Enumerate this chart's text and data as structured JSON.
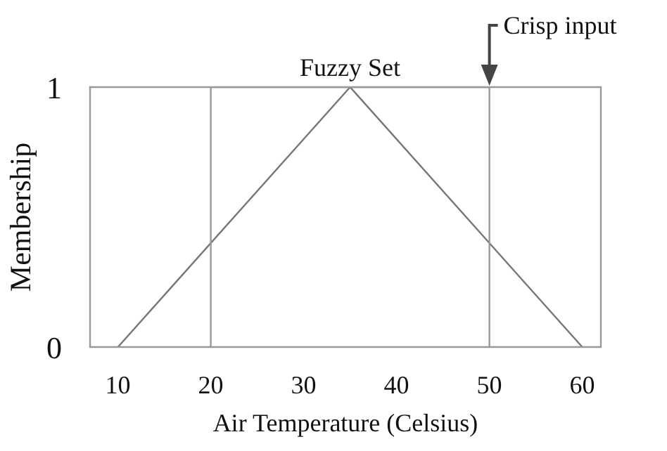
{
  "chart_data": {
    "type": "line",
    "xlabel": "Air Temperature (Celsius)",
    "ylabel": "Membership",
    "series": [
      {
        "x": [
          10,
          35,
          60
        ],
        "values": [
          0,
          1,
          0
        ],
        "color": "#777777"
      },
      {
        "x": [
          20,
          20,
          50,
          50
        ],
        "values": [
          0,
          1,
          1,
          0
        ],
        "color": "#999999"
      }
    ],
    "xlim": [
      7,
      62
    ],
    "xticks": [
      10,
      20,
      30,
      40,
      50,
      60
    ],
    "ylim": [
      0,
      1
    ],
    "yticks": [
      0,
      1
    ],
    "marker": "none",
    "line_style": "solid",
    "annotations": [
      {
        "text": "Fuzzy Set",
        "x": 35,
        "y": 1
      },
      {
        "text": "Crisp input",
        "x": 50,
        "y": 1
      }
    ]
  }
}
